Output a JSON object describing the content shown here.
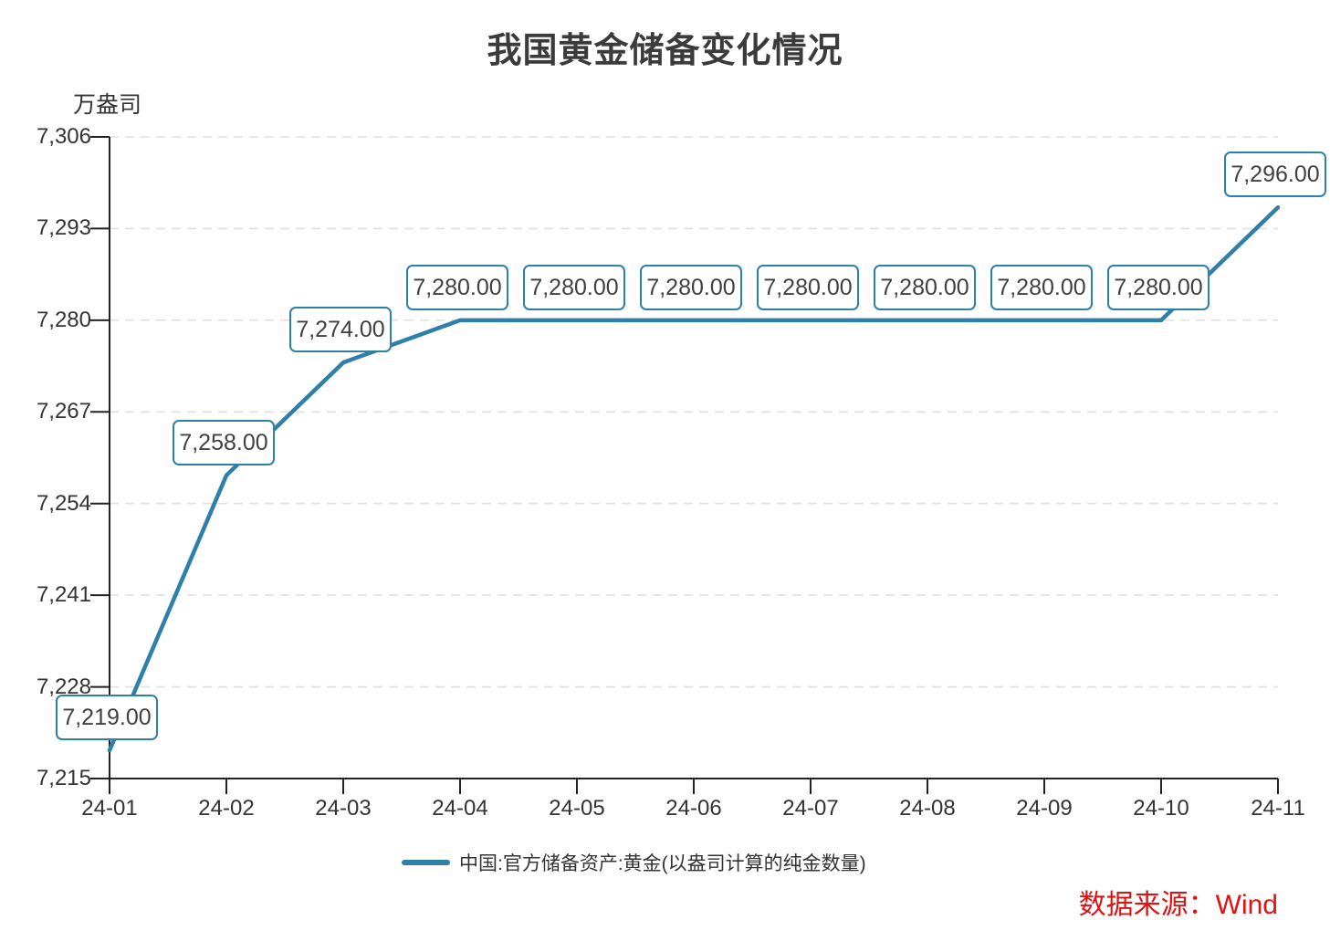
{
  "title": "我国黄金储备变化情况",
  "y_axis_unit": "万盎司",
  "legend": {
    "label": "中国:官方储备资产:黄金(以盎司计算的纯金数量)"
  },
  "source": {
    "label": "数据来源：Wind"
  },
  "colors": {
    "line": "#2e7fa9",
    "label_box_border": "#2e7fa9",
    "grid": "#e0e0e0",
    "axis": "#222222",
    "tick_text": "#333333",
    "label_text": "#404040",
    "title_text": "#3b3b3b",
    "source_red": "#e01212"
  },
  "chart_data": {
    "type": "line",
    "title": "我国黄金储备变化情况",
    "xlabel": "",
    "ylabel": "万盎司",
    "categories": [
      "24-01",
      "24-02",
      "24-03",
      "24-04",
      "24-05",
      "24-06",
      "24-07",
      "24-08",
      "24-09",
      "24-10",
      "24-11"
    ],
    "series": [
      {
        "name": "中国:官方储备资产:黄金(以盎司计算的纯金数量)",
        "values": [
          7219,
          7258,
          7274,
          7280,
          7280,
          7280,
          7280,
          7280,
          7280,
          7280,
          7296
        ]
      }
    ],
    "data_labels": [
      "7,219.00",
      "7,258.00",
      "7,274.00",
      "7,280.00",
      "7,280.00",
      "7,280.00",
      "7,280.00",
      "7,280.00",
      "7,280.00",
      "7,280.00",
      "7,296.00"
    ],
    "y_tick_labels": [
      "7,215",
      "7,228",
      "7,241",
      "7,254",
      "7,267",
      "7,280",
      "7,293",
      "7,306"
    ],
    "y_tick_values": [
      7215,
      7228,
      7241,
      7254,
      7267,
      7280,
      7293,
      7306
    ],
    "ylim": [
      7215,
      7306
    ],
    "grid": "horizontal-dashed",
    "legend_position": "bottom"
  }
}
